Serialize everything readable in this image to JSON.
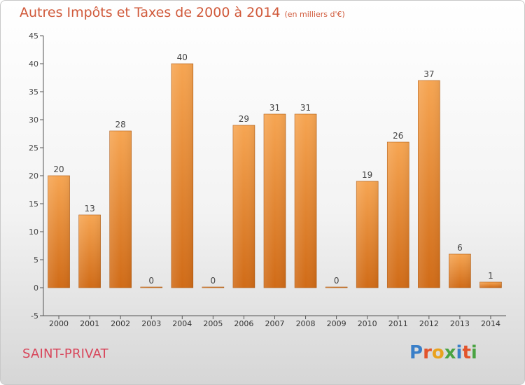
{
  "title": "Autres Impôts et Taxes de 2000 à 2014",
  "unit": "(en milliers d'€)",
  "commune": "SAINT-PRIVAT",
  "logo": {
    "text": "Proxiti",
    "colors": [
      "#3a7fc8",
      "#e2542c",
      "#e9a21e",
      "#4aa342",
      "#3a7fc8",
      "#e2542c",
      "#4aa342"
    ]
  },
  "colors": {
    "bar_top": "#f6a552",
    "bar_bottom": "#d06b17",
    "title": "#d0593a",
    "commune": "#d8455a"
  },
  "chart_data": {
    "type": "bar",
    "title": "Autres Impôts et Taxes de 2000 à 2014",
    "subtitle": "(en milliers d'€)",
    "categories": [
      "2000",
      "2001",
      "2002",
      "2003",
      "2004",
      "2005",
      "2006",
      "2007",
      "2008",
      "2009",
      "2010",
      "2011",
      "2012",
      "2013",
      "2014"
    ],
    "values": [
      20,
      13,
      28,
      0,
      40,
      0,
      29,
      31,
      31,
      0,
      19,
      26,
      37,
      6,
      1
    ],
    "data_labels": [
      "20",
      "13",
      "28",
      "0",
      "40",
      "0",
      "29",
      "31",
      "31",
      "0",
      "19",
      "26",
      "37",
      "6",
      "1"
    ],
    "ylim": [
      -5,
      45
    ],
    "yticks": [
      -5,
      0,
      5,
      10,
      15,
      20,
      25,
      30,
      35,
      40,
      45
    ],
    "grid": false,
    "legend": "none"
  }
}
